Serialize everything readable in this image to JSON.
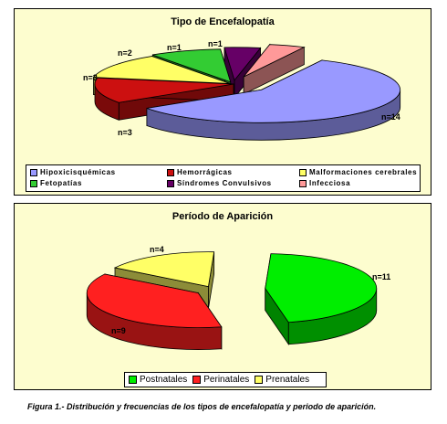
{
  "chart_data": [
    {
      "type": "pie",
      "title": "Tipo de Encefalopatía",
      "categories": [
        "Hipoxicisquémicas",
        "Hemorrágicas",
        "Malformaciones cerebrales",
        "Fetopatías",
        "Síndromes Convulsivos",
        "Infecciosa"
      ],
      "values": [
        14,
        3,
        3,
        2,
        1,
        1
      ],
      "data_labels": [
        "n=14",
        "n=3",
        "n=3",
        "n=2",
        "n=1",
        "n=1"
      ],
      "colors": [
        "#9999ff",
        "#cc1010",
        "#ffff66",
        "#33cc33",
        "#660066",
        "#ff9999"
      ],
      "legend_position": "bottom"
    },
    {
      "type": "pie",
      "title": "Período de Aparición",
      "categories": [
        "Postnatales",
        "Perinatales",
        "Prenatales"
      ],
      "values": [
        11,
        9,
        4
      ],
      "data_labels": [
        "n=11",
        "n=9",
        "n=4"
      ],
      "colors": [
        "#00ee00",
        "#ff2020",
        "#ffff66"
      ],
      "legend_position": "bottom"
    }
  ],
  "legend1": {
    "items": [
      "Hipoxicisquémicas",
      "Hemorrágicas",
      "Malformaciones cerebrales",
      "Fetopatías",
      "Síndromes Convulsivos",
      "Infecciosa"
    ]
  },
  "legend2": {
    "items": [
      "Postnatales",
      "Perinatales",
      "Prenatales"
    ]
  },
  "caption": "Figura 1.- Distribución y frecuencias de los tipos de encefalopatía y  periodo de  aparición."
}
